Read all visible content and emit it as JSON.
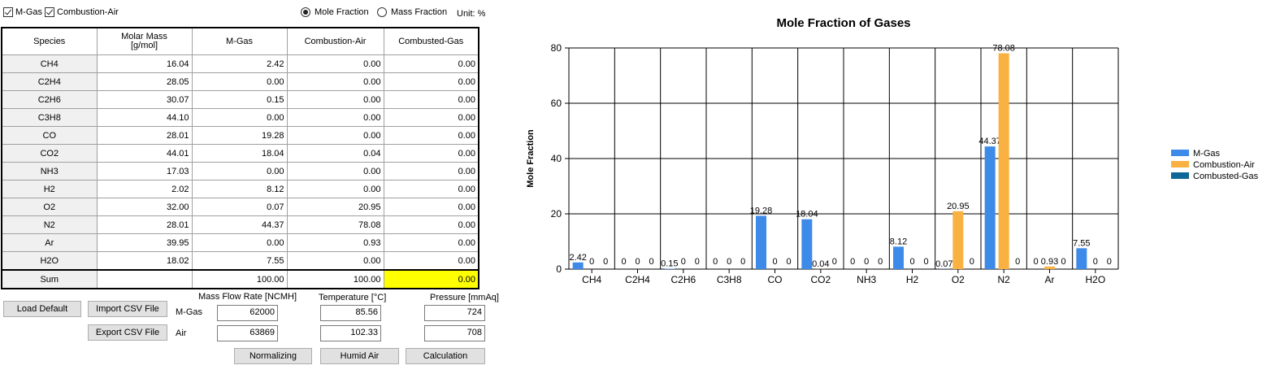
{
  "top": {
    "checkboxes": [
      {
        "label": "M-Gas",
        "checked": true
      },
      {
        "label": "Combustion-Air",
        "checked": true
      }
    ],
    "radios": [
      {
        "label": "Mole Fraction",
        "selected": true
      },
      {
        "label": "Mass Fraction",
        "selected": false
      }
    ],
    "unit": "Unit: %"
  },
  "table": {
    "headers": [
      "Species",
      "Molar Mass\n[g/mol]",
      "M-Gas",
      "Combustion-Air",
      "Combusted-Gas"
    ],
    "rows": [
      {
        "species": "CH4",
        "molar_mass": "16.04",
        "mgas": "2.42",
        "air": "0.00",
        "combusted": "0.00"
      },
      {
        "species": "C2H4",
        "molar_mass": "28.05",
        "mgas": "0.00",
        "air": "0.00",
        "combusted": "0.00"
      },
      {
        "species": "C2H6",
        "molar_mass": "30.07",
        "mgas": "0.15",
        "air": "0.00",
        "combusted": "0.00"
      },
      {
        "species": "C3H8",
        "molar_mass": "44.10",
        "mgas": "0.00",
        "air": "0.00",
        "combusted": "0.00"
      },
      {
        "species": "CO",
        "molar_mass": "28.01",
        "mgas": "19.28",
        "air": "0.00",
        "combusted": "0.00"
      },
      {
        "species": "CO2",
        "molar_mass": "44.01",
        "mgas": "18.04",
        "air": "0.04",
        "combusted": "0.00"
      },
      {
        "species": "NH3",
        "molar_mass": "17.03",
        "mgas": "0.00",
        "air": "0.00",
        "combusted": "0.00"
      },
      {
        "species": "H2",
        "molar_mass": "2.02",
        "mgas": "8.12",
        "air": "0.00",
        "combusted": "0.00"
      },
      {
        "species": "O2",
        "molar_mass": "32.00",
        "mgas": "0.07",
        "air": "20.95",
        "combusted": "0.00"
      },
      {
        "species": "N2",
        "molar_mass": "28.01",
        "mgas": "44.37",
        "air": "78.08",
        "combusted": "0.00"
      },
      {
        "species": "Ar",
        "molar_mass": "39.95",
        "mgas": "0.00",
        "air": "0.93",
        "combusted": "0.00"
      },
      {
        "species": "H2O",
        "molar_mass": "18.02",
        "mgas": "7.55",
        "air": "0.00",
        "combusted": "0.00"
      }
    ],
    "sum": {
      "species": "Sum",
      "molar_mass": "",
      "mgas": "100.00",
      "air": "100.00",
      "combusted": "0.00"
    }
  },
  "controls": {
    "load_default": "Load Default",
    "import_csv": "Import CSV File",
    "export_csv": "Export CSV File",
    "normalizing": "Normalizing",
    "humid_air": "Humid Air",
    "calculation": "Calculation",
    "col_mass_flow": "Mass Flow Rate [NCMH]",
    "col_temperature": "Temperature [°C]",
    "col_pressure": "Pressure [mmAq]",
    "row_mgas": "M-Gas",
    "row_air": "Air",
    "mgas": {
      "flow": "62000",
      "temp": "85.56",
      "pressure": "724"
    },
    "air": {
      "flow": "63869",
      "temp": "102.33",
      "pressure": "708"
    }
  },
  "highlight_color": "#ffff00",
  "chart_data": {
    "type": "bar",
    "title": "Mole Fraction of Gases",
    "xlabel": "",
    "ylabel": "Mole Fraction",
    "ylim": [
      0,
      80
    ],
    "yticks": [
      0,
      20,
      40,
      60,
      80
    ],
    "categories": [
      "CH4",
      "C2H4",
      "C2H6",
      "C3H8",
      "CO",
      "CO2",
      "NH3",
      "H2",
      "O2",
      "N2",
      "Ar",
      "H2O"
    ],
    "series": [
      {
        "name": "M-Gas",
        "color": "#3d8ae8",
        "values": [
          2.42,
          0,
          0.15,
          0,
          19.28,
          18.04,
          0,
          8.12,
          0.07,
          44.37,
          0,
          7.55
        ],
        "labels": [
          "2.42",
          "0",
          "0.15",
          "0",
          "19.28",
          "18.04",
          "0",
          "8.12",
          "0.07",
          "44.37",
          "0",
          "7.55"
        ]
      },
      {
        "name": "Combustion-Air",
        "color": "#f9b142",
        "values": [
          0,
          0,
          0,
          0,
          0,
          0.04,
          0,
          0,
          20.95,
          78.08,
          0.93,
          0
        ],
        "labels": [
          "0",
          "0",
          "0",
          "0",
          "0",
          "0.04",
          "0",
          "0",
          "20.95",
          "78.08",
          "0.93",
          "0"
        ]
      },
      {
        "name": "Combusted-Gas",
        "color": "#0e6796",
        "values": [
          0,
          0,
          0,
          0,
          0,
          0,
          0,
          0,
          0,
          0,
          0,
          0
        ],
        "labels": [
          "0",
          "0",
          "0",
          "0",
          "0",
          "0",
          "0",
          "0",
          "0",
          "0",
          "0",
          "0"
        ]
      }
    ],
    "grid": true,
    "legend": "right"
  }
}
